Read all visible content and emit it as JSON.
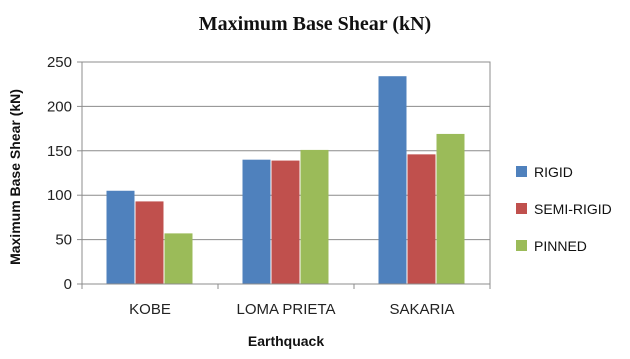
{
  "chart_data": {
    "type": "bar",
    "title": "Maximum Base Shear (kN)",
    "xlabel": "Earthquack",
    "ylabel": "Maximum Base Shear (kN)",
    "categories": [
      "KOBE",
      "LOMA PRIETA",
      "SAKARIA"
    ],
    "series": [
      {
        "name": "RIGID",
        "color": "#4F81BD",
        "values": [
          105,
          140,
          234
        ]
      },
      {
        "name": "SEMI-RIGID",
        "color": "#C0504D",
        "values": [
          93,
          139,
          146
        ]
      },
      {
        "name": "PINNED",
        "color": "#9BBB59",
        "values": [
          57,
          151,
          169
        ]
      }
    ],
    "ylim": [
      0,
      250
    ],
    "yticks": [
      0,
      50,
      100,
      150,
      200,
      250
    ],
    "grid": true,
    "legend": "right"
  }
}
